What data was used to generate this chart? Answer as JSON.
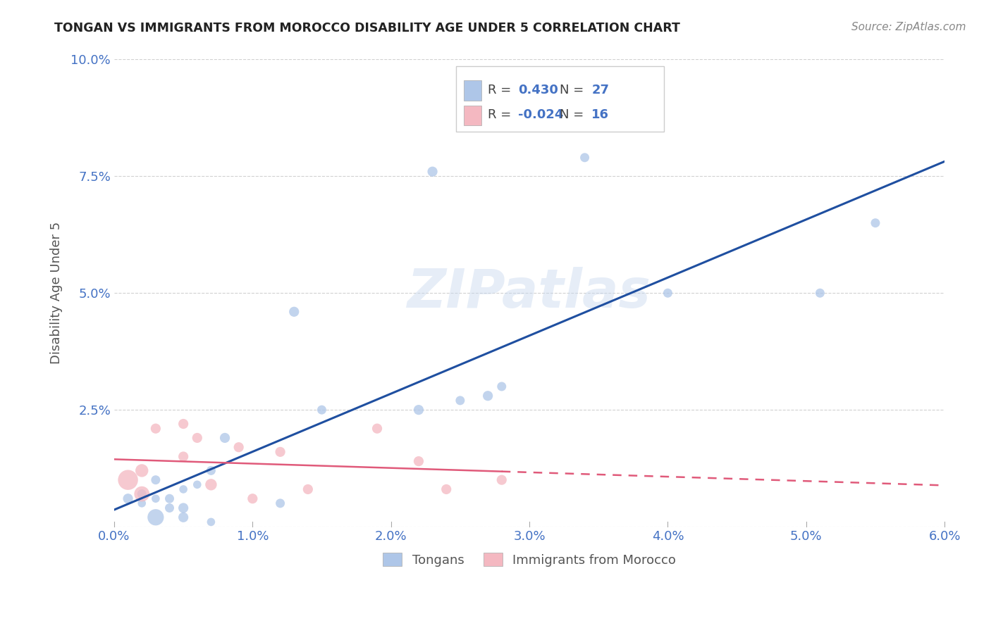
{
  "title": "TONGAN VS IMMIGRANTS FROM MOROCCO DISABILITY AGE UNDER 5 CORRELATION CHART",
  "source": "Source: ZipAtlas.com",
  "ylabel": "Disability Age Under 5",
  "xlim": [
    0.0,
    0.06
  ],
  "ylim": [
    0.0,
    0.1
  ],
  "xticks": [
    0.0,
    0.01,
    0.02,
    0.03,
    0.04,
    0.05,
    0.06
  ],
  "xtick_labels": [
    "0.0%",
    "1.0%",
    "2.0%",
    "3.0%",
    "4.0%",
    "5.0%",
    "6.0%"
  ],
  "yticks": [
    0.0,
    0.025,
    0.05,
    0.075,
    0.1
  ],
  "ytick_labels": [
    "",
    "2.5%",
    "5.0%",
    "7.5%",
    "10.0%"
  ],
  "tongan_color": "#aec6e8",
  "morocco_color": "#f4b8c1",
  "line_blue": "#1f4fa0",
  "line_pink": "#e05a7a",
  "legend_R_blue": "0.430",
  "legend_N_blue": "27",
  "legend_R_pink": "-0.024",
  "legend_N_pink": "16",
  "legend_label_blue": "Tongans",
  "legend_label_pink": "Immigrants from Morocco",
  "watermark": "ZIPatlas",
  "tongan_x": [
    0.001,
    0.002,
    0.002,
    0.003,
    0.003,
    0.003,
    0.004,
    0.004,
    0.005,
    0.005,
    0.005,
    0.006,
    0.007,
    0.007,
    0.008,
    0.012,
    0.013,
    0.015,
    0.022,
    0.023,
    0.025,
    0.027,
    0.028,
    0.034,
    0.04,
    0.051,
    0.055
  ],
  "tongan_y": [
    0.006,
    0.005,
    0.007,
    0.002,
    0.006,
    0.01,
    0.004,
    0.006,
    0.002,
    0.004,
    0.008,
    0.009,
    0.001,
    0.012,
    0.019,
    0.005,
    0.046,
    0.025,
    0.025,
    0.076,
    0.027,
    0.028,
    0.03,
    0.079,
    0.05,
    0.05,
    0.065
  ],
  "tongan_size": [
    30,
    20,
    25,
    80,
    20,
    25,
    25,
    25,
    30,
    30,
    20,
    20,
    20,
    25,
    30,
    25,
    30,
    25,
    30,
    30,
    25,
    30,
    25,
    25,
    25,
    25,
    25
  ],
  "morocco_x": [
    0.001,
    0.002,
    0.002,
    0.003,
    0.005,
    0.005,
    0.006,
    0.007,
    0.009,
    0.01,
    0.012,
    0.014,
    0.019,
    0.022,
    0.024,
    0.028
  ],
  "morocco_y": [
    0.01,
    0.007,
    0.012,
    0.021,
    0.015,
    0.022,
    0.019,
    0.009,
    0.017,
    0.006,
    0.016,
    0.008,
    0.021,
    0.014,
    0.008,
    0.01
  ],
  "morocco_size": [
    120,
    70,
    50,
    30,
    30,
    30,
    30,
    40,
    30,
    30,
    30,
    30,
    30,
    30,
    30,
    30
  ]
}
